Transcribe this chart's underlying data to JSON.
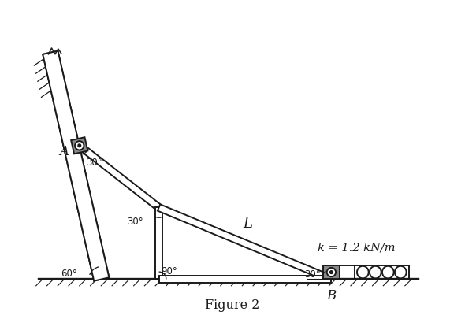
{
  "bg_color": "#ffffff",
  "line_color": "#1a1a1a",
  "gray_color": "#888888",
  "fig_width": 5.9,
  "fig_height": 4.06,
  "title": "Figure 2",
  "label_k": "k = 1.2 kN/m",
  "label_L": "L",
  "label_A": "A",
  "label_B": "B",
  "angle_30a": "30°",
  "angle_30b": "30°",
  "angle_30c": "30°",
  "angle_60": "60°",
  "angle_90": "90°"
}
